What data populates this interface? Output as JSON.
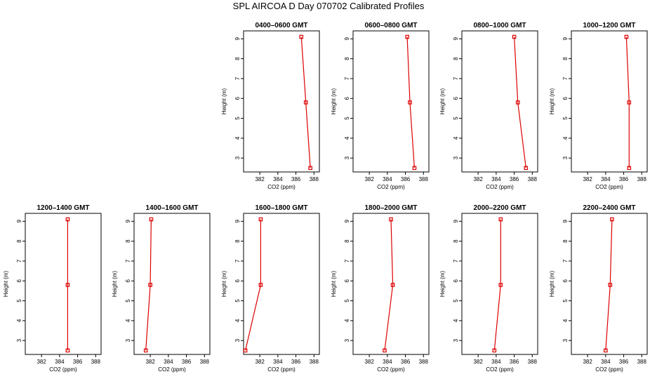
{
  "title": "SPL AIRCOA D  Day 070702  Calibrated Profiles",
  "colors": {
    "series": "#dd0000",
    "axis": "#000000"
  },
  "chart_data": [
    {
      "type": "line",
      "title": "0400–0600 GMT",
      "xlabel": "CO2 (ppm)",
      "ylabel": "Height (m)",
      "xlim": [
        380.2,
        388.6
      ],
      "ylim": [
        2.3,
        9.4
      ],
      "xticks": [
        382,
        384,
        386,
        388
      ],
      "yticks": [
        3,
        4,
        5,
        6,
        7,
        8,
        9
      ],
      "x": [
        386.6,
        387.1,
        387.6
      ],
      "y": [
        9.1,
        5.8,
        2.5
      ]
    },
    {
      "type": "line",
      "title": "0600–0800 GMT",
      "xlabel": "CO2 (ppm)",
      "ylabel": "Height (m)",
      "xlim": [
        380.2,
        388.6
      ],
      "ylim": [
        2.3,
        9.4
      ],
      "xticks": [
        382,
        384,
        386,
        388
      ],
      "yticks": [
        3,
        4,
        5,
        6,
        7,
        8,
        9
      ],
      "x": [
        386.2,
        386.5,
        387.0
      ],
      "y": [
        9.1,
        5.8,
        2.5
      ]
    },
    {
      "type": "line",
      "title": "0800–1000 GMT",
      "xlabel": "CO2 (ppm)",
      "ylabel": "Height (m)",
      "xlim": [
        380.2,
        388.6
      ],
      "ylim": [
        2.3,
        9.4
      ],
      "xticks": [
        382,
        384,
        386,
        388
      ],
      "yticks": [
        3,
        4,
        5,
        6,
        7,
        8,
        9
      ],
      "x": [
        386.0,
        386.4,
        387.3
      ],
      "y": [
        9.1,
        5.8,
        2.5
      ]
    },
    {
      "type": "line",
      "title": "1000–1200 GMT",
      "xlabel": "CO2 (ppm)",
      "ylabel": "Height (m)",
      "xlim": [
        380.2,
        388.6
      ],
      "ylim": [
        2.3,
        9.4
      ],
      "xticks": [
        382,
        384,
        386,
        388
      ],
      "yticks": [
        3,
        4,
        5,
        6,
        7,
        8,
        9
      ],
      "x": [
        386.3,
        386.6,
        386.6
      ],
      "y": [
        9.1,
        5.8,
        2.5
      ]
    },
    {
      "type": "line",
      "title": "1200–1400 GMT",
      "xlabel": "CO2 (ppm)",
      "ylabel": "Height (m)",
      "xlim": [
        380.2,
        388.6
      ],
      "ylim": [
        2.3,
        9.4
      ],
      "xticks": [
        382,
        384,
        386,
        388
      ],
      "yticks": [
        3,
        4,
        5,
        6,
        7,
        8,
        9
      ],
      "x": [
        384.9,
        384.9,
        384.9
      ],
      "y": [
        9.1,
        5.8,
        2.5
      ]
    },
    {
      "type": "line",
      "title": "1400–1600 GMT",
      "xlabel": "CO2 (ppm)",
      "ylabel": "Height (m)",
      "xlim": [
        380.2,
        388.6
      ],
      "ylim": [
        2.3,
        9.4
      ],
      "xticks": [
        382,
        384,
        386,
        388
      ],
      "yticks": [
        3,
        4,
        5,
        6,
        7,
        8,
        9
      ],
      "x": [
        382.1,
        382.0,
        381.5
      ],
      "y": [
        9.1,
        5.8,
        2.5
      ]
    },
    {
      "type": "line",
      "title": "1600–1800 GMT",
      "xlabel": "CO2 (ppm)",
      "ylabel": "Height (m)",
      "xlim": [
        380.2,
        388.6
      ],
      "ylim": [
        2.3,
        9.4
      ],
      "xticks": [
        382,
        384,
        386,
        388
      ],
      "yticks": [
        3,
        4,
        5,
        6,
        7,
        8,
        9
      ],
      "x": [
        382.1,
        382.1,
        380.4
      ],
      "y": [
        9.1,
        5.8,
        2.5
      ]
    },
    {
      "type": "line",
      "title": "1800–2000 GMT",
      "xlabel": "CO2 (ppm)",
      "ylabel": "Height (m)",
      "xlim": [
        380.2,
        388.6
      ],
      "ylim": [
        2.3,
        9.4
      ],
      "xticks": [
        382,
        384,
        386,
        388
      ],
      "yticks": [
        3,
        4,
        5,
        6,
        7,
        8,
        9
      ],
      "x": [
        384.4,
        384.6,
        383.7
      ],
      "y": [
        9.1,
        5.8,
        2.5
      ]
    },
    {
      "type": "line",
      "title": "2000–2200 GMT",
      "xlabel": "CO2 (ppm)",
      "ylabel": "Height (m)",
      "xlim": [
        380.2,
        388.6
      ],
      "ylim": [
        2.3,
        9.4
      ],
      "xticks": [
        382,
        384,
        386,
        388
      ],
      "yticks": [
        3,
        4,
        5,
        6,
        7,
        8,
        9
      ],
      "x": [
        384.5,
        384.5,
        383.8
      ],
      "y": [
        9.1,
        5.8,
        2.5
      ]
    },
    {
      "type": "line",
      "title": "2200–2400 GMT",
      "xlabel": "CO2 (ppm)",
      "ylabel": "Height (m)",
      "xlim": [
        380.2,
        388.6
      ],
      "ylim": [
        2.3,
        9.4
      ],
      "xticks": [
        382,
        384,
        386,
        388
      ],
      "yticks": [
        3,
        4,
        5,
        6,
        7,
        8,
        9
      ],
      "x": [
        384.7,
        384.5,
        384.0
      ],
      "y": [
        9.1,
        5.8,
        2.5
      ]
    }
  ]
}
